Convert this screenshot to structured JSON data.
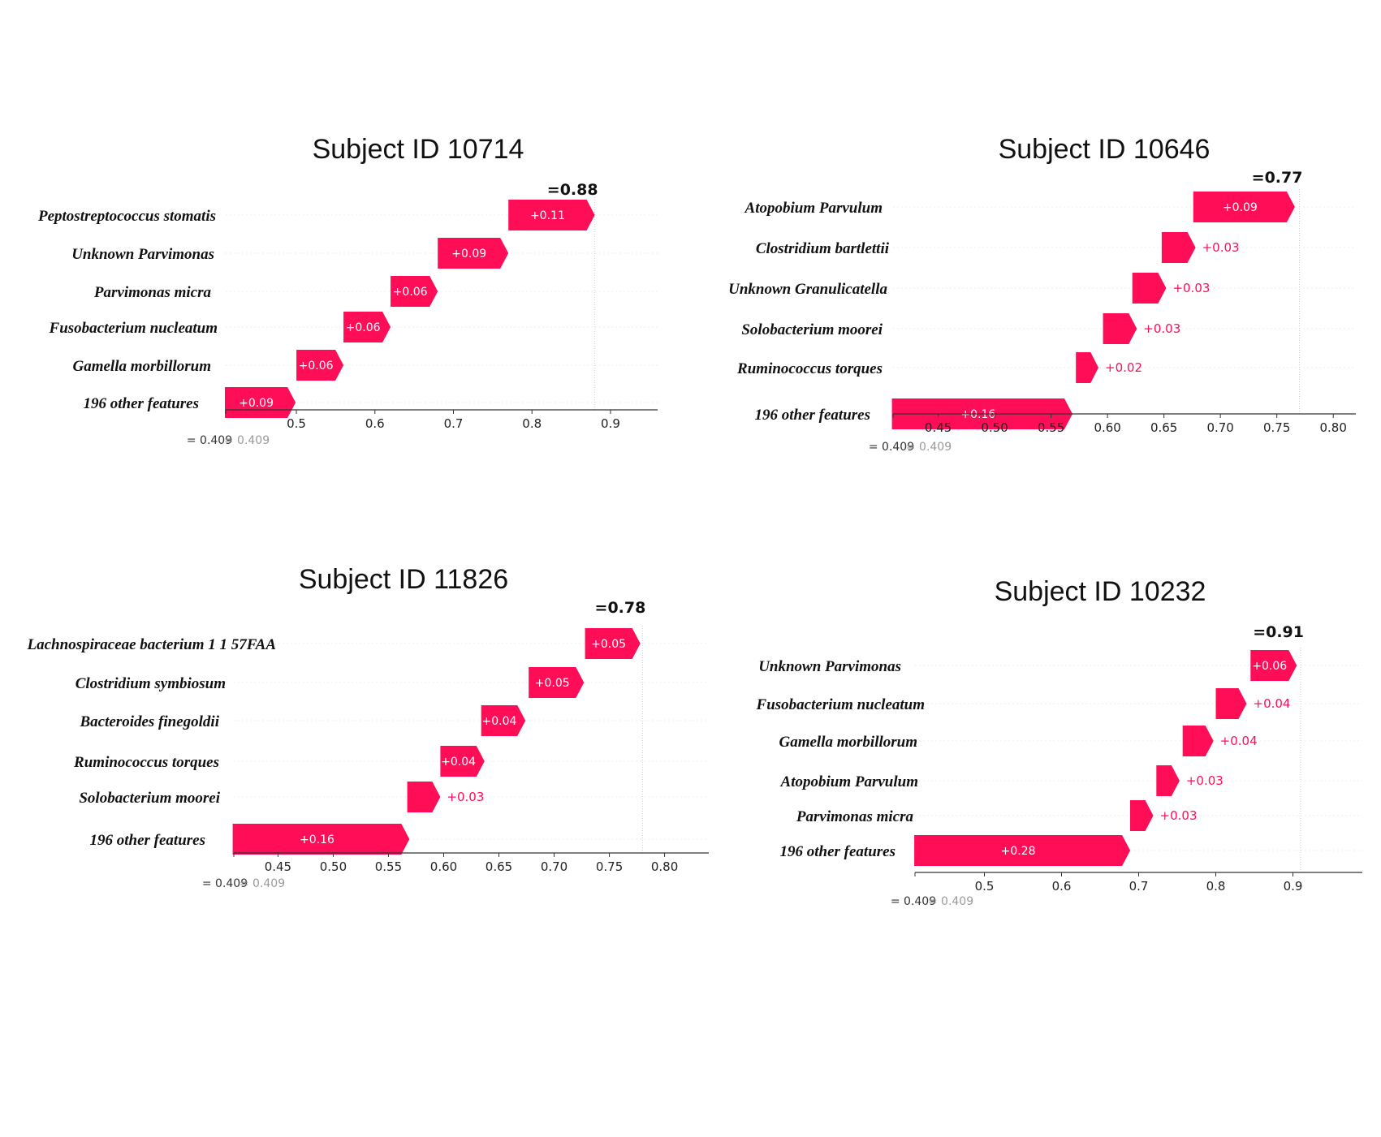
{
  "chart_data": [
    {
      "type": "waterfall",
      "title": "Subject ID 10714",
      "base_value_label": "= 0.409",
      "final_label": "=0.88",
      "final_value": 0.88,
      "xlim": [
        0.41,
        0.96
      ],
      "ticks": [
        0.5,
        0.6,
        0.7,
        0.8,
        0.9
      ],
      "tick_labels": [
        "0.5",
        "0.6",
        "0.7",
        "0.8",
        "0.9"
      ],
      "bar_color": "#ff0d57",
      "features": [
        {
          "name": "Peptostreptococcus stomatis",
          "start": 0.77,
          "value": 0.11,
          "label": "+0.11"
        },
        {
          "name": "Unknown Parvimonas",
          "start": 0.68,
          "value": 0.09,
          "label": "+0.09"
        },
        {
          "name": "Parvimonas micra",
          "start": 0.62,
          "value": 0.06,
          "label": "+0.06"
        },
        {
          "name": "Fusobacterium nucleatum",
          "start": 0.56,
          "value": 0.06,
          "label": "+0.06"
        },
        {
          "name": "Gamella morbillorum",
          "start": 0.5,
          "value": 0.06,
          "label": "+0.06"
        },
        {
          "name": "196 other features",
          "start": 0.409,
          "value": 0.09,
          "label": "+0.09"
        }
      ]
    },
    {
      "type": "waterfall",
      "title": "Subject ID 10646",
      "base_value_label": "= 0.409",
      "final_label": "=0.77",
      "final_value": 0.77,
      "xlim": [
        0.41,
        0.82
      ],
      "ticks": [
        0.45,
        0.5,
        0.55,
        0.6,
        0.65,
        0.7,
        0.75,
        0.8
      ],
      "tick_labels": [
        "0.45",
        "0.50",
        "0.55",
        "0.60",
        "0.65",
        "0.70",
        "0.75",
        "0.80"
      ],
      "bar_color": "#ff0d57",
      "features": [
        {
          "name": "Atopobium Parvulum",
          "start": 0.676,
          "value": 0.09,
          "label": "+0.09"
        },
        {
          "name": "Clostridium bartlettii",
          "start": 0.648,
          "value": 0.03,
          "label": "+0.03"
        },
        {
          "name": "Unknown Granulicatella",
          "start": 0.622,
          "value": 0.03,
          "label": "+0.03"
        },
        {
          "name": "Solobacterium moorei",
          "start": 0.596,
          "value": 0.03,
          "label": "+0.03"
        },
        {
          "name": "Ruminococcus torques",
          "start": 0.572,
          "value": 0.02,
          "label": "+0.02"
        },
        {
          "name": "196 other features",
          "start": 0.409,
          "value": 0.16,
          "label": "+0.16"
        }
      ]
    },
    {
      "type": "waterfall",
      "title": "Subject ID 11826",
      "base_value_label": "= 0.409",
      "final_label": "=0.78",
      "final_value": 0.78,
      "xlim": [
        0.41,
        0.84
      ],
      "ticks": [
        0.45,
        0.5,
        0.55,
        0.6,
        0.65,
        0.7,
        0.75,
        0.8
      ],
      "tick_labels": [
        "0.45",
        "0.50",
        "0.55",
        "0.60",
        "0.65",
        "0.70",
        "0.75",
        "0.80"
      ],
      "bar_color": "#ff0d57",
      "features": [
        {
          "name": "Lachnospiraceae bacterium 1 1 57FAA",
          "start": 0.728,
          "value": 0.05,
          "label": "+0.05"
        },
        {
          "name": "Clostridium symbiosum",
          "start": 0.677,
          "value": 0.05,
          "label": "+0.05"
        },
        {
          "name": "Bacteroides finegoldii",
          "start": 0.634,
          "value": 0.04,
          "label": "+0.04"
        },
        {
          "name": "Ruminococcus torques",
          "start": 0.597,
          "value": 0.04,
          "label": "+0.04"
        },
        {
          "name": "Solobacterium moorei",
          "start": 0.567,
          "value": 0.03,
          "label": "+0.03"
        },
        {
          "name": "196 other features",
          "start": 0.409,
          "value": 0.16,
          "label": "+0.16"
        }
      ]
    },
    {
      "type": "waterfall",
      "title": "Subject ID 10232",
      "base_value_label": "= 0.409",
      "final_label": "=0.91",
      "final_value": 0.91,
      "xlim": [
        0.41,
        0.99
      ],
      "ticks": [
        0.5,
        0.6,
        0.7,
        0.8,
        0.9
      ],
      "tick_labels": [
        "0.5",
        "0.6",
        "0.7",
        "0.8",
        "0.9"
      ],
      "bar_color": "#ff0d57",
      "features": [
        {
          "name": "Unknown Parvimonas",
          "start": 0.845,
          "value": 0.06,
          "label": "+0.06"
        },
        {
          "name": "Fusobacterium nucleatum",
          "start": 0.8,
          "value": 0.04,
          "label": "+0.04"
        },
        {
          "name": "Gamella morbillorum",
          "start": 0.757,
          "value": 0.04,
          "label": "+0.04"
        },
        {
          "name": "Atopobium Parvulum",
          "start": 0.723,
          "value": 0.03,
          "label": "+0.03"
        },
        {
          "name": "Parvimonas micra",
          "start": 0.689,
          "value": 0.03,
          "label": "+0.03"
        },
        {
          "name": "196 other features",
          "start": 0.409,
          "value": 0.28,
          "label": "+0.28"
        }
      ]
    }
  ]
}
